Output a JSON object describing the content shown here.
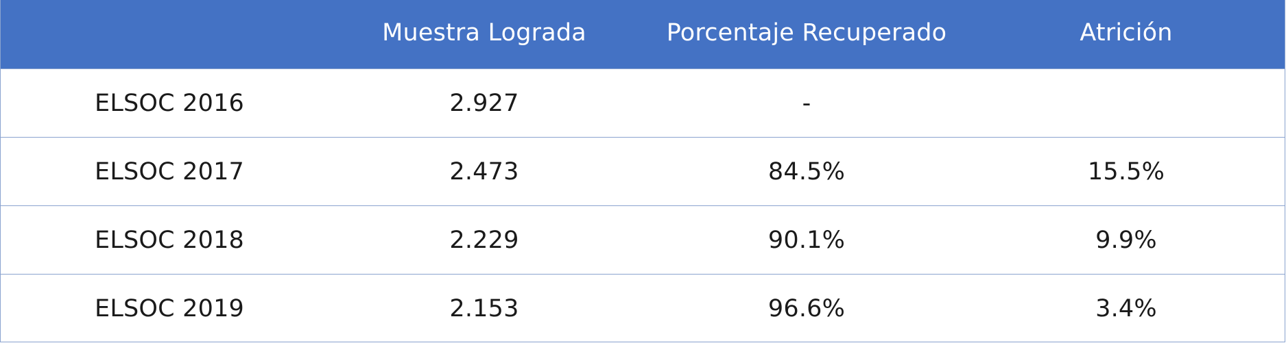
{
  "table": {
    "header": {
      "col0": "",
      "col1": "Muestra Lograda",
      "col2": "Porcentaje Recuperado",
      "col3": "Atrición"
    },
    "rows": [
      {
        "label": "ELSOC 2016",
        "muestra": "2.927",
        "porcentaje": "-",
        "atricion": ""
      },
      {
        "label": "ELSOC 2017",
        "muestra": "2.473",
        "porcentaje": "84.5%",
        "atricion": "15.5%"
      },
      {
        "label": "ELSOC 2018",
        "muestra": "2.229",
        "porcentaje": "90.1%",
        "atricion": "9.9%"
      },
      {
        "label": "ELSOC 2019",
        "muestra": "2.153",
        "porcentaje": "96.6%",
        "atricion": "3.4%"
      }
    ]
  },
  "colors": {
    "header_bg": "#4472c4",
    "header_text": "#ffffff",
    "border": "#8aa3cf",
    "body_text": "#1a1a1a"
  }
}
